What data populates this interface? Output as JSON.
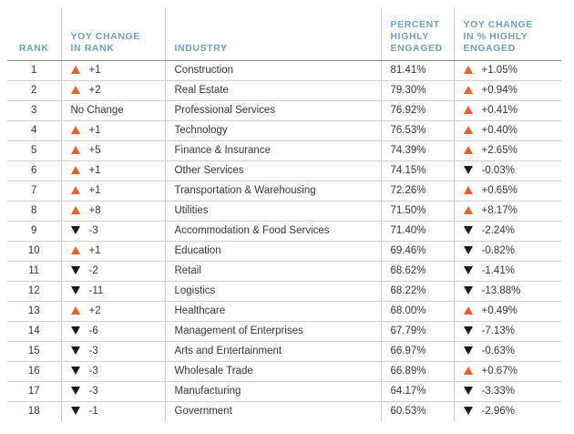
{
  "colors": {
    "header_text": "#6f9ec0",
    "up_arrow": "#e8602c",
    "down_arrow": "#1a1a1a",
    "text": "#333333"
  },
  "headers": {
    "rank": "RANK",
    "yoy_rank": [
      "YOY CHANGE",
      "IN RANK"
    ],
    "industry": "INDUSTRY",
    "pct": [
      "PERCENT",
      "HIGHLY",
      "ENGAGED"
    ],
    "yoy_pct": [
      "YOY CHANGE",
      "IN % HIGHLY",
      "ENGAGED"
    ]
  },
  "rows": [
    {
      "rank": "1",
      "rank_dir": "up",
      "rank_change": "+1",
      "industry": "Construction",
      "pct": "81.41%",
      "pct_dir": "up",
      "pct_change": "+1.05%"
    },
    {
      "rank": "2",
      "rank_dir": "up",
      "rank_change": "+2",
      "industry": "Real Estate",
      "pct": "79.30%",
      "pct_dir": "up",
      "pct_change": "+0.94%"
    },
    {
      "rank": "3",
      "rank_dir": "none",
      "rank_change": "No Change",
      "industry": "Professional Services",
      "pct": "76.92%",
      "pct_dir": "up",
      "pct_change": "+0.41%"
    },
    {
      "rank": "4",
      "rank_dir": "up",
      "rank_change": "+1",
      "industry": "Technology",
      "pct": "76.53%",
      "pct_dir": "up",
      "pct_change": "+0.40%"
    },
    {
      "rank": "5",
      "rank_dir": "up",
      "rank_change": "+5",
      "industry": "Finance & Insurance",
      "pct": "74.39%",
      "pct_dir": "up",
      "pct_change": "+2.65%"
    },
    {
      "rank": "6",
      "rank_dir": "up",
      "rank_change": "+1",
      "industry": "Other Services",
      "pct": "74.15%",
      "pct_dir": "down",
      "pct_change": "-0.03%"
    },
    {
      "rank": "7",
      "rank_dir": "up",
      "rank_change": "+1",
      "industry": "Transportation & Warehousing",
      "pct": "72.26%",
      "pct_dir": "up",
      "pct_change": "+0.65%"
    },
    {
      "rank": "8",
      "rank_dir": "up",
      "rank_change": "+8",
      "industry": "Utilities",
      "pct": "71.50%",
      "pct_dir": "up",
      "pct_change": "+8.17%"
    },
    {
      "rank": "9",
      "rank_dir": "down",
      "rank_change": "-3",
      "industry": "Accommodation & Food Services",
      "pct": "71.40%",
      "pct_dir": "down",
      "pct_change": "-2.24%"
    },
    {
      "rank": "10",
      "rank_dir": "up",
      "rank_change": "+1",
      "industry": "Education",
      "pct": "69.46%",
      "pct_dir": "down",
      "pct_change": "-0.82%"
    },
    {
      "rank": "11",
      "rank_dir": "down",
      "rank_change": "-2",
      "industry": "Retail",
      "pct": "68.62%",
      "pct_dir": "down",
      "pct_change": "-1.41%"
    },
    {
      "rank": "12",
      "rank_dir": "down",
      "rank_change": "-11",
      "industry": "Logistics",
      "pct": "68.22%",
      "pct_dir": "down",
      "pct_change": "-13.88%"
    },
    {
      "rank": "13",
      "rank_dir": "up",
      "rank_change": "+2",
      "industry": "Healthcare",
      "pct": "68.00%",
      "pct_dir": "up",
      "pct_change": "+0.49%"
    },
    {
      "rank": "14",
      "rank_dir": "down",
      "rank_change": "-6",
      "industry": "Management of Enterprises",
      "pct": "67.79%",
      "pct_dir": "down",
      "pct_change": "-7.13%"
    },
    {
      "rank": "15",
      "rank_dir": "down",
      "rank_change": "-3",
      "industry": "Arts and Entertainment",
      "pct": "66.97%",
      "pct_dir": "down",
      "pct_change": "-0.63%"
    },
    {
      "rank": "16",
      "rank_dir": "down",
      "rank_change": "-3",
      "industry": "Wholesale Trade",
      "pct": "66.89%",
      "pct_dir": "up",
      "pct_change": "+0.67%"
    },
    {
      "rank": "17",
      "rank_dir": "down",
      "rank_change": "-3",
      "industry": "Manufacturing",
      "pct": "64.17%",
      "pct_dir": "down",
      "pct_change": "-3.33%"
    },
    {
      "rank": "18",
      "rank_dir": "down",
      "rank_change": "-1",
      "industry": "Government",
      "pct": "60.53%",
      "pct_dir": "down",
      "pct_change": "-2.96%"
    }
  ]
}
